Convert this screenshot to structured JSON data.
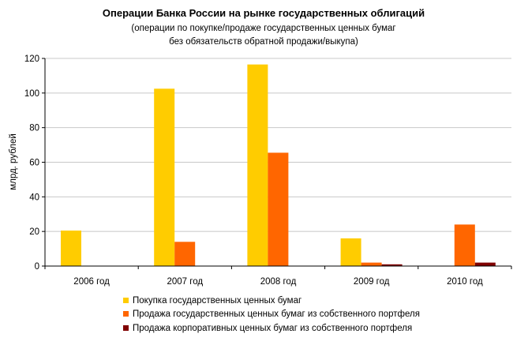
{
  "chart_data": {
    "type": "bar",
    "title": "Операции Банка России на рынке государственных облигаций",
    "subtitle_lines": [
      "(операции по покупке/продаже государственных ценных бумаг",
      "без обязательств обратной продажи/выкупа)"
    ],
    "xlabel": "",
    "ylabel": "млрд. рублей",
    "ylim": [
      0,
      120
    ],
    "yticks": [
      "0",
      "20",
      "40",
      "60",
      "80",
      "100",
      "120"
    ],
    "categories": [
      "2006 год",
      "2007 год",
      "2008 год",
      "2009 год",
      "2010 год"
    ],
    "series": [
      {
        "name": "Покупка государственных ценных бумаг",
        "color": "#FFCC00",
        "values": [
          20.5,
          102.5,
          116.5,
          16,
          0
        ]
      },
      {
        "name": "Продажа государственных ценных бумаг из собственного портфеля",
        "color": "#FF6600",
        "values": [
          0,
          14,
          65.5,
          2,
          24
        ]
      },
      {
        "name": "Продажа корпоративных ценных бумаг из собственного портфеля",
        "color": "#800000",
        "values": [
          0,
          0,
          0,
          1,
          2
        ]
      }
    ],
    "grid": true,
    "legend_position": "bottom-left"
  }
}
